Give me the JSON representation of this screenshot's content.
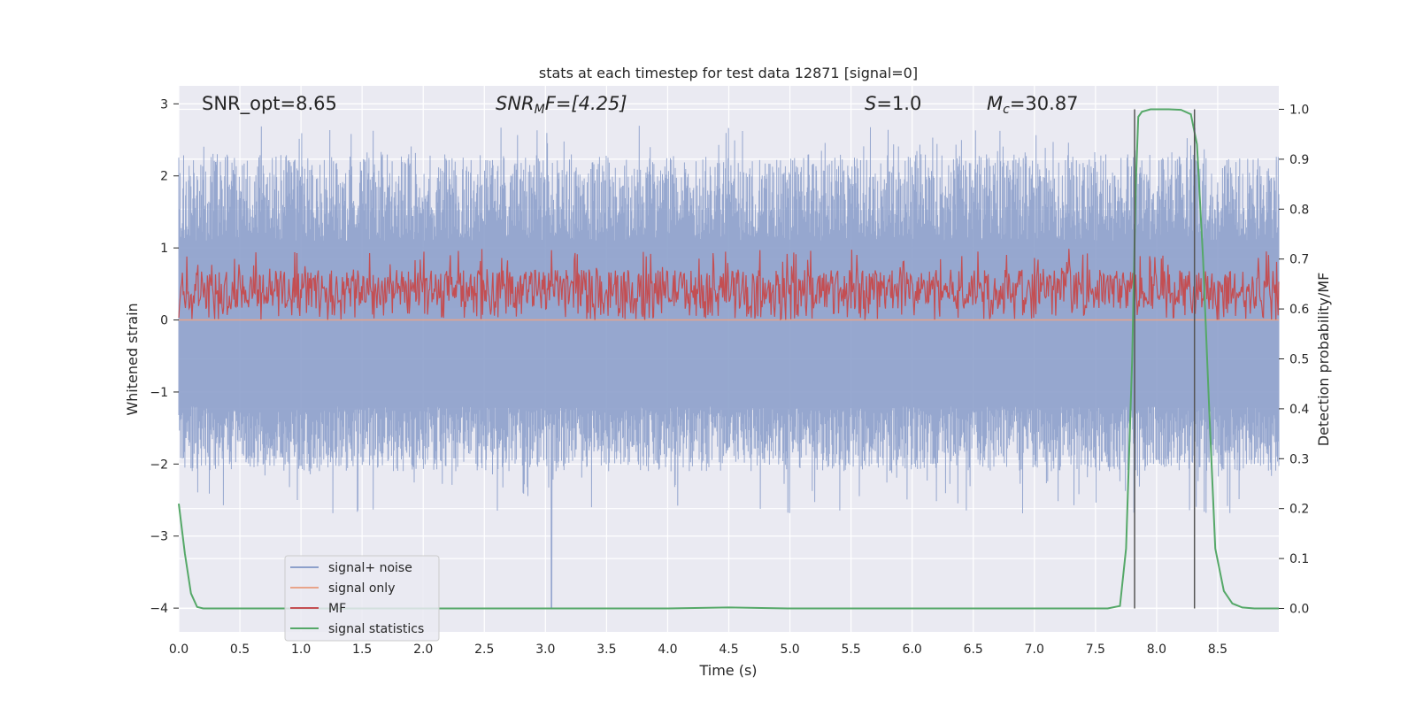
{
  "chart_data": {
    "type": "line",
    "title": "stats at each timestep for test data 12871 [signal=0]",
    "xlabel": "Time (s)",
    "ylabel_left": "Whitened strain",
    "ylabel_right": "Detection probability/MF",
    "xlim": [
      0.0,
      9.0
    ],
    "ylim_left": [
      -4.33,
      3.25
    ],
    "ylim_right": [
      -0.047,
      1.047
    ],
    "x_ticks": [
      "0.0",
      "0.5",
      "1.0",
      "1.5",
      "2.0",
      "2.5",
      "3.0",
      "3.5",
      "4.0",
      "4.5",
      "5.0",
      "5.5",
      "6.0",
      "6.5",
      "7.0",
      "7.5",
      "8.0",
      "8.5"
    ],
    "y_ticks_left": [
      "3",
      "2",
      "1",
      "0",
      "−1",
      "−2",
      "−3",
      "−4"
    ],
    "y_ticks_right": [
      "1.0",
      "0.9",
      "0.8",
      "0.7",
      "0.6",
      "0.5",
      "0.4",
      "0.3",
      "0.2",
      "0.1",
      "0.0"
    ],
    "annotations": {
      "snr_opt": "SNR_opt=8.65",
      "snr_mf_sym": "SNR",
      "snr_mf_sub": "M",
      "snr_mf_rest": "F=[4.25]",
      "s_sym": "S",
      "s_val": "=1.0",
      "mc_sym": "M",
      "mc_sub": "c",
      "mc_val": "=30.87"
    },
    "series": [
      {
        "name": "signal+ noise",
        "color": "#8da0cb",
        "axis": "left",
        "note": "noisy whitened strain, approx. range -2.7 to 2.7 with spikes to -4.0 near t=3.05"
      },
      {
        "name": "signal only",
        "color": "#e8a48a",
        "axis": "left",
        "values_note": "flat at 0"
      },
      {
        "name": "MF",
        "color": "#c44e52",
        "axis": "left",
        "note": "noisy, approx. range 0.0 to 1.0"
      },
      {
        "name": "signal statistics",
        "color": "#55a868",
        "axis": "right",
        "x": [
          0.0,
          0.05,
          0.1,
          0.15,
          0.2,
          0.3,
          1.0,
          4.0,
          4.5,
          5.0,
          7.0,
          7.6,
          7.7,
          7.75,
          7.8,
          7.83,
          7.85,
          7.88,
          7.95,
          8.0,
          8.1,
          8.2,
          8.28,
          8.33,
          8.38,
          8.43,
          8.48,
          8.55,
          8.62,
          8.7,
          8.8,
          9.0
        ],
        "values": [
          0.21,
          0.11,
          0.03,
          0.003,
          0.0,
          0.0,
          0.0,
          0.0,
          0.002,
          0.0,
          0.0,
          0.0,
          0.005,
          0.12,
          0.5,
          0.85,
          0.985,
          0.995,
          1.0,
          1.0,
          1.0,
          0.999,
          0.99,
          0.93,
          0.7,
          0.4,
          0.12,
          0.035,
          0.01,
          0.002,
          0.0,
          0.0
        ]
      }
    ],
    "vertical_markers": [
      7.82,
      8.31
    ],
    "legend": {
      "position": "lower-left",
      "labels": [
        "signal+ noise",
        "signal only",
        "MF",
        "signal statistics"
      ]
    }
  }
}
